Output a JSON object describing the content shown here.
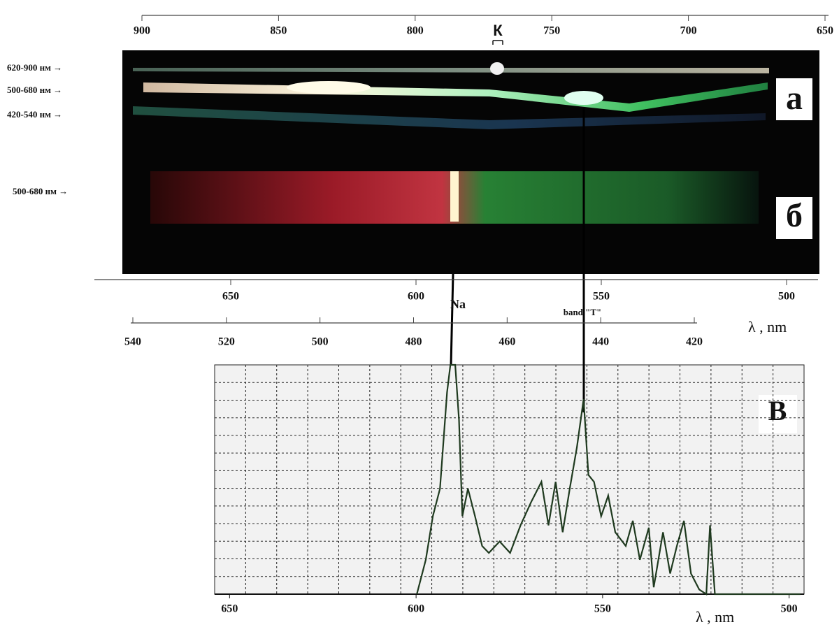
{
  "top_scale": {
    "ticks": [
      900,
      850,
      800,
      750,
      700,
      650
    ],
    "marker": "К"
  },
  "row_labels": [
    "620-900 нм →",
    "500-680 нм →",
    "420-540 нм →",
    "500-680 нм →"
  ],
  "panel_labels": {
    "a": "а",
    "b": "б",
    "c": "В"
  },
  "mid_scale": {
    "ticks": [
      650,
      600,
      550,
      500
    ]
  },
  "lower_scale": {
    "ticks": [
      540,
      520,
      500,
      480,
      460,
      440,
      420
    ]
  },
  "line_labels": {
    "na": "Na",
    "band": "band \"T\""
  },
  "axis_unit": "λ , nm",
  "chart_data": {
    "type": "line",
    "x_label": "λ , nm",
    "color": "#1f3a1f",
    "xlim": [
      654,
      496
    ],
    "xticks": [
      650,
      600,
      550,
      500
    ],
    "ylim": [
      0,
      100
    ],
    "grid": true,
    "x": [
      599.8,
      597.4,
      595.5,
      593.6,
      591.7,
      590.8,
      589.5,
      588.5,
      587.6,
      586.1,
      584.2,
      582.3,
      580.5,
      577.6,
      574.8,
      572.0,
      569.2,
      566.4,
      564.5,
      562.6,
      560.7,
      558.8,
      556.9,
      555.1,
      553.8,
      552.3,
      550.4,
      548.5,
      546.6,
      543.8,
      541.9,
      540.0,
      537.6,
      536.3,
      533.8,
      531.9,
      530.1,
      528.2,
      526.3,
      524.1,
      522.2,
      521.2,
      519.9,
      497
    ],
    "values": [
      0,
      15,
      34,
      46,
      88,
      100,
      100,
      76,
      34,
      46,
      34,
      21,
      18,
      23,
      18,
      30,
      40,
      49,
      30,
      49,
      27,
      46,
      64,
      85,
      52,
      49,
      34,
      43,
      27,
      21,
      32,
      15,
      29,
      3,
      27,
      9,
      21,
      32,
      9,
      2,
      0,
      30,
      0,
      0
    ]
  }
}
